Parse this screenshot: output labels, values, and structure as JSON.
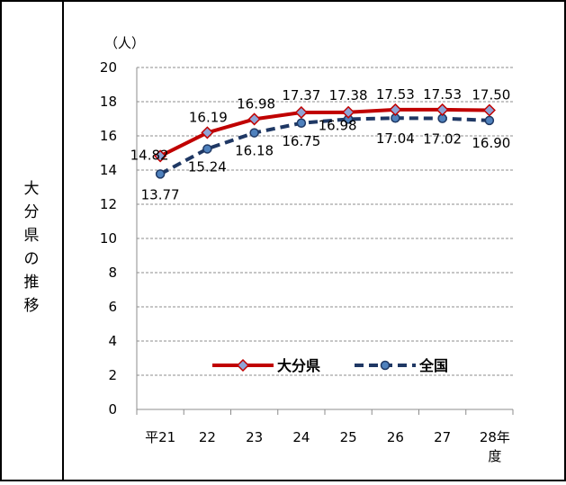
{
  "side_label": "大分県の推移",
  "unit_label": "（人）",
  "chart_data": {
    "type": "line",
    "categories": [
      "平21",
      "22",
      "23",
      "24",
      "25",
      "26",
      "27",
      "28年度"
    ],
    "ylim": [
      0,
      20
    ],
    "yticks": [
      0,
      2,
      4,
      6,
      8,
      10,
      12,
      14,
      16,
      18,
      20
    ],
    "grid": true,
    "legend_position": "bottom-center",
    "series": [
      {
        "name": "大分県",
        "values": [
          14.82,
          16.19,
          16.98,
          17.37,
          17.38,
          17.53,
          17.53,
          17.5
        ],
        "labels": [
          "14.82",
          "16.19",
          "16.98",
          "17.37",
          "17.38",
          "17.53",
          "17.53",
          "17.50"
        ],
        "color": "#c00000",
        "marker_fill": "#8fa4d6",
        "line_style": "solid",
        "marker": "diamond"
      },
      {
        "name": "全国",
        "values": [
          13.77,
          15.24,
          16.18,
          16.75,
          16.98,
          17.04,
          17.02,
          16.9
        ],
        "labels": [
          "13.77",
          "15.24",
          "16.18",
          "16.75",
          "16.98",
          "17.04",
          "17.02",
          "16.90"
        ],
        "color": "#1f3864",
        "marker_fill": "#4f81bd",
        "line_style": "dashed",
        "marker": "circle"
      }
    ]
  }
}
